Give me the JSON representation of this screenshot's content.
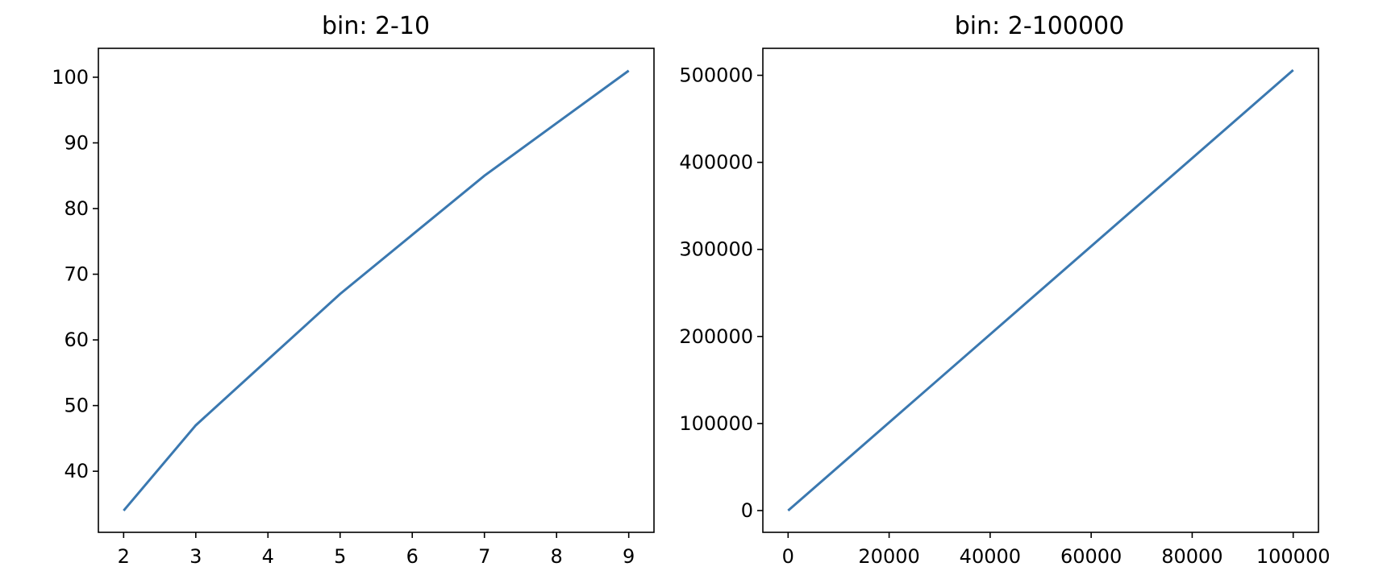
{
  "chart_data": [
    {
      "type": "line",
      "title": "bin: 2-10",
      "xlabel": "",
      "ylabel": "",
      "x": [
        2,
        3,
        4,
        5,
        6,
        7,
        8,
        9
      ],
      "y": [
        34,
        47,
        57,
        67,
        76,
        85,
        93,
        101
      ],
      "xlim": [
        1.65,
        9.35
      ],
      "ylim": [
        30.7,
        104.4
      ],
      "xticks": [
        2,
        3,
        4,
        5,
        6,
        7,
        8,
        9
      ],
      "xtick_labels": [
        "2",
        "3",
        "4",
        "5",
        "6",
        "7",
        "8",
        "9"
      ],
      "yticks": [
        40,
        50,
        60,
        70,
        80,
        90,
        100
      ],
      "ytick_labels": [
        "40",
        "50",
        "60",
        "70",
        "80",
        "90",
        "100"
      ],
      "line_color": "#3a78b0",
      "grid": false,
      "legend": false
    },
    {
      "type": "line",
      "title": "bin: 2-100000",
      "xlabel": "",
      "ylabel": "",
      "x": [
        2,
        100000
      ],
      "y": [
        0,
        506000
      ],
      "xlim": [
        -5000,
        105000
      ],
      "ylim": [
        -25000,
        531000
      ],
      "xticks": [
        0,
        20000,
        40000,
        60000,
        80000,
        100000
      ],
      "xtick_labels": [
        "0",
        "20000",
        "40000",
        "60000",
        "80000",
        "100000"
      ],
      "yticks": [
        0,
        100000,
        200000,
        300000,
        400000,
        500000
      ],
      "ytick_labels": [
        "0",
        "100000",
        "200000",
        "300000",
        "400000",
        "500000"
      ],
      "line_color": "#3a78b0",
      "grid": false,
      "legend": false
    }
  ]
}
